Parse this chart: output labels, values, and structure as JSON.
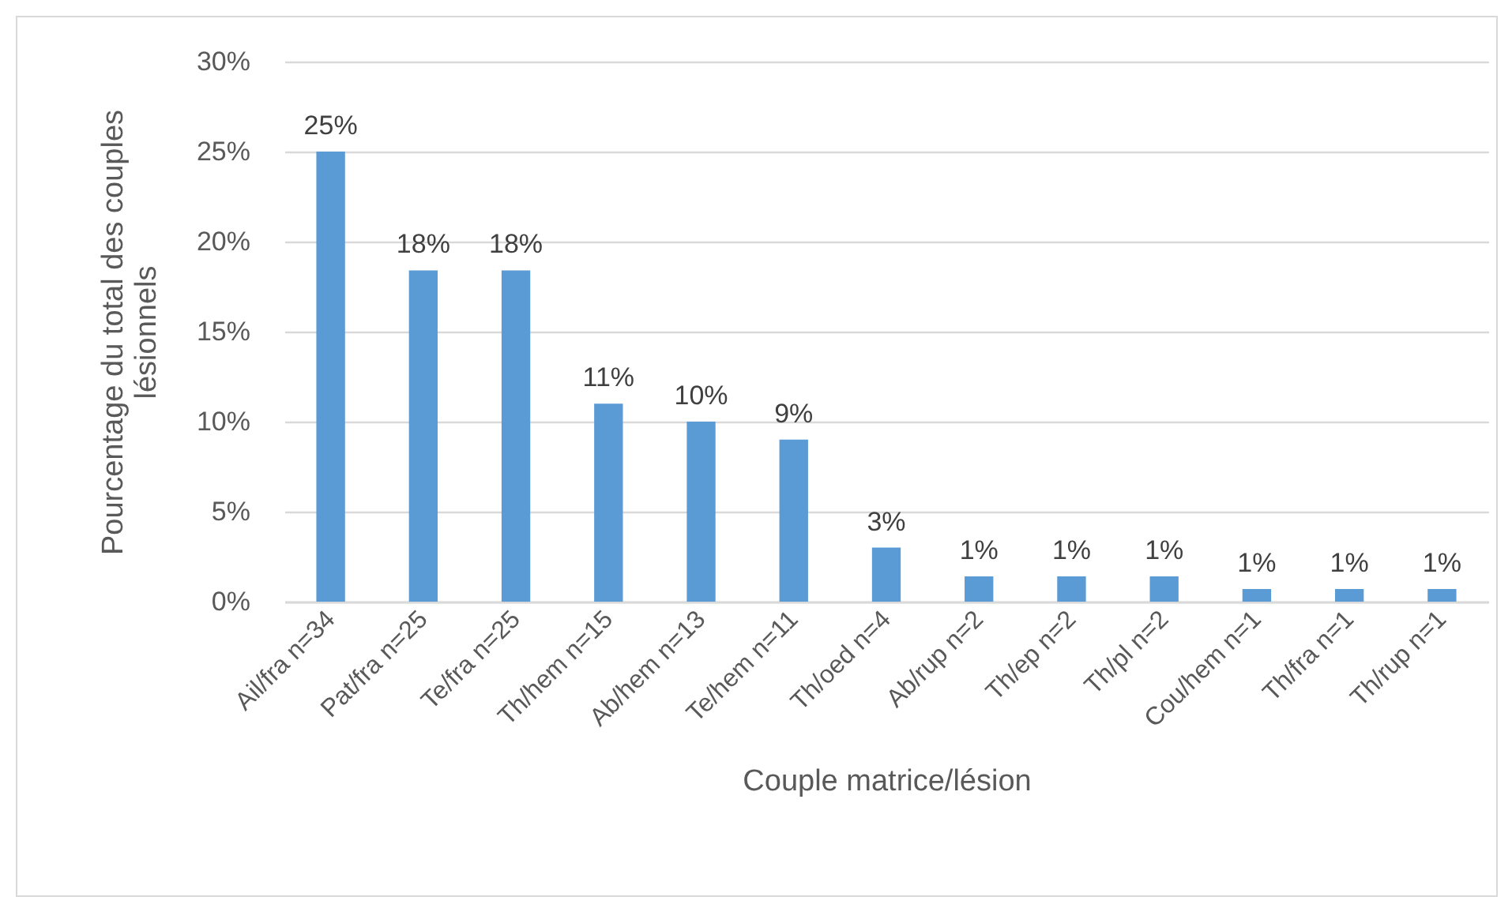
{
  "chart_data": {
    "type": "bar",
    "xlabel": "Couple matrice/lésion",
    "ylabel": "Pourcentage du total des couples lésionnels",
    "categories": [
      "Ail/fra n=34",
      "Pat/fra n=25",
      "Te/fra n=25",
      "Th/hem n=15",
      "Ab/hem n=13",
      "Te/hem n=11",
      "Th/oed n=4",
      "Ab/rup n=2",
      "Th/ep n=2",
      "Th/pl n=2",
      "Cou/hem n=1",
      "Th/fra n=1",
      "Th/rup n=1"
    ],
    "values": [
      25,
      18.4,
      18.4,
      11,
      10,
      9,
      3,
      1.4,
      1.4,
      1.4,
      0.7,
      0.7,
      0.7
    ],
    "value_labels": [
      "25%",
      "18%",
      "18%",
      "11%",
      "10%",
      "9%",
      "3%",
      "1%",
      "1%",
      "1%",
      "1%",
      "1%",
      "1%"
    ],
    "color": "#5b9bd5",
    "ylim": [
      0,
      30
    ],
    "yticks": [
      {
        "value": 0,
        "label": "0%"
      },
      {
        "value": 5,
        "label": "5%"
      },
      {
        "value": 10,
        "label": "10%"
      },
      {
        "value": 15,
        "label": "15%"
      },
      {
        "value": 20,
        "label": "20%"
      },
      {
        "value": 25,
        "label": "25%"
      },
      {
        "value": 30,
        "label": "30%"
      }
    ],
    "grid": "y"
  }
}
